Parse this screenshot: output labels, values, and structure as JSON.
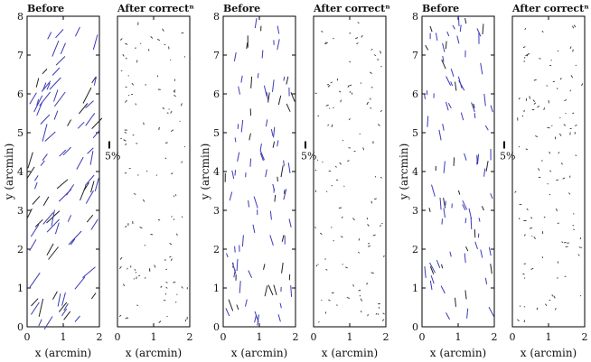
{
  "figure": {
    "units_label": "5%",
    "xlabel": "x (arcmin)",
    "ylabel": "y (arcmin)",
    "panel_titles": [
      "Before",
      "After correctⁿ",
      "Before",
      "After correctⁿ",
      "Before",
      "After correctⁿ"
    ]
  },
  "chart_data": [
    {
      "type": "scatter",
      "title": "Before",
      "xlabel": "x (arcmin)",
      "ylabel": "y (arcmin)",
      "xlim": [
        0,
        2
      ],
      "ylim": [
        0,
        8
      ],
      "xticks": [
        0,
        1,
        2
      ],
      "yticks": [
        0,
        1,
        2,
        3,
        4,
        5,
        6,
        7,
        8
      ],
      "description_color": "#3a3ab8",
      "whisker_mean_length_percent": 6,
      "whisker_mean_angle_deg": 60
    },
    {
      "type": "scatter",
      "title": "After correctⁿ",
      "xlabel": "x (arcmin)",
      "xlim": [
        0,
        2
      ],
      "ylim": [
        0,
        8
      ],
      "xticks": [
        0,
        1,
        2
      ],
      "whisker_mean_length_percent": 0.8,
      "scale_bar_label": "5%"
    },
    {
      "type": "scatter",
      "title": "Before",
      "xlabel": "x (arcmin)",
      "ylabel": "y (arcmin)",
      "xlim": [
        0,
        2
      ],
      "ylim": [
        0,
        8
      ],
      "xticks": [
        0,
        1,
        2
      ],
      "yticks": [
        0,
        1,
        2,
        3,
        4,
        5,
        6,
        7,
        8
      ],
      "whisker_mean_length_percent": 4,
      "whisker_mean_angle_deg": 95
    },
    {
      "type": "scatter",
      "title": "After correctⁿ",
      "xlabel": "x (arcmin)",
      "xlim": [
        0,
        2
      ],
      "ylim": [
        0,
        8
      ],
      "xticks": [
        0,
        1,
        2
      ],
      "whisker_mean_length_percent": 0.8,
      "scale_bar_label": "5%"
    },
    {
      "type": "scatter",
      "title": "Before",
      "xlabel": "x (arcmin)",
      "ylabel": "y (arcmin)",
      "xlim": [
        0,
        2
      ],
      "ylim": [
        0,
        8
      ],
      "xticks": [
        0,
        1,
        2
      ],
      "yticks": [
        0,
        1,
        2,
        3,
        4,
        5,
        6,
        7,
        8
      ],
      "whisker_mean_length_percent": 4,
      "whisker_mean_angle_deg": 100
    },
    {
      "type": "scatter",
      "title": "After correctⁿ",
      "xlabel": "x (arcmin)",
      "xlim": [
        0,
        2
      ],
      "ylim": [
        0,
        8
      ],
      "xticks": [
        0,
        1,
        2
      ],
      "whisker_mean_length_percent": 0.8,
      "scale_bar_label": "5%"
    }
  ]
}
